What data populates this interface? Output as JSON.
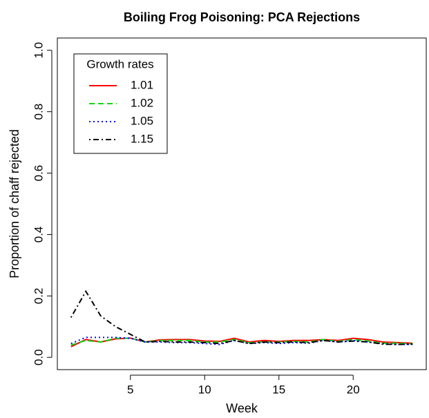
{
  "chart_data": {
    "type": "line",
    "title": "Boiling Frog Poisoning: PCA Rejections",
    "x_label": "Week",
    "y_label": "Proportion of chaff rejected",
    "legend_title": "Growth rates",
    "legend_position": "top-left",
    "x": [
      1,
      2,
      3,
      4,
      5,
      6,
      7,
      8,
      9,
      10,
      11,
      12,
      13,
      14,
      15,
      16,
      17,
      18,
      19,
      20,
      21,
      22,
      23,
      24
    ],
    "series": [
      {
        "name": "1.01",
        "color": "#ff0000",
        "dash": "solid",
        "values": [
          0.035,
          0.058,
          0.05,
          0.06,
          0.063,
          0.05,
          0.057,
          0.058,
          0.058,
          0.053,
          0.052,
          0.062,
          0.05,
          0.055,
          0.052,
          0.055,
          0.055,
          0.058,
          0.055,
          0.062,
          0.058,
          0.05,
          0.048,
          0.046
        ]
      },
      {
        "name": "1.02",
        "color": "#00dd00",
        "dash": "dashed",
        "values": [
          0.04,
          0.055,
          0.05,
          0.062,
          0.062,
          0.05,
          0.055,
          0.055,
          0.055,
          0.05,
          0.05,
          0.058,
          0.048,
          0.05,
          0.05,
          0.052,
          0.05,
          0.058,
          0.052,
          0.058,
          0.053,
          0.046,
          0.046,
          0.044
        ]
      },
      {
        "name": "1.05",
        "color": "#0000ff",
        "dash": "dotted",
        "values": [
          0.045,
          0.065,
          0.065,
          0.065,
          0.062,
          0.05,
          0.05,
          0.048,
          0.048,
          0.045,
          0.042,
          0.055,
          0.045,
          0.048,
          0.045,
          0.048,
          0.046,
          0.055,
          0.05,
          0.055,
          0.05,
          0.045,
          0.042,
          0.042
        ]
      },
      {
        "name": "1.15",
        "color": "#000000",
        "dash": "dotdash",
        "values": [
          0.13,
          0.215,
          0.135,
          0.1,
          0.075,
          0.05,
          0.052,
          0.05,
          0.05,
          0.048,
          0.045,
          0.055,
          0.045,
          0.05,
          0.048,
          0.05,
          0.048,
          0.055,
          0.05,
          0.053,
          0.05,
          0.043,
          0.042,
          0.043
        ]
      }
    ],
    "xlim": [
      0.08,
      24.92
    ],
    "xticks": [
      5,
      10,
      15,
      20
    ],
    "ylim": [
      -0.04,
      1.04
    ],
    "yticks": [
      {
        "value": 0,
        "label": "0.0"
      },
      0.2,
      0.4,
      0.6,
      0.8,
      {
        "value": 1,
        "label": "1.0"
      }
    ],
    "grid": false
  }
}
